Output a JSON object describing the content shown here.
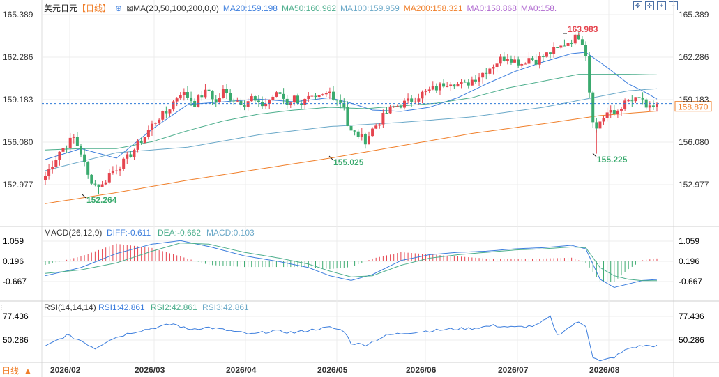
{
  "header": {
    "symbol": "美元日元",
    "period": "【日线】",
    "ma_title": "MA(20,50,100,200,0,0)",
    "ma20": "MA20:159.198",
    "ma50": "MA50:160.962",
    "ma100": "MA100:159.959",
    "ma200": "MA200:158.321",
    "ma0a": "MA0:158.868",
    "ma0b": "MA0:158."
  },
  "colors": {
    "up": "#e5454f",
    "down": "#3aaa6e",
    "ma20": "#3b7ddd",
    "ma50": "#4cae8c",
    "ma100": "#6aa8c8",
    "ma200": "#f07f2a",
    "ma0": "#b06ad0",
    "grid": "#ececec"
  },
  "price_axis": {
    "ticks": [
      "165.389",
      "162.286",
      "159.183",
      "156.080",
      "152.977"
    ],
    "current_price": "158.870",
    "labels": {
      "high": "163.983",
      "low1": "152.264",
      "low2": "155.025",
      "low3": "155.225"
    }
  },
  "macd": {
    "title": "MACD(26,12,9)",
    "diff": "DIFF:-0.611",
    "dea": "DEA:-0.662",
    "macd": "MACD:0.103",
    "ticks": [
      "1.059",
      "0.196",
      "-0.667"
    ]
  },
  "rsi": {
    "title": "RSI(14,14,14)",
    "rsi1": "RSI1:42.861",
    "rsi2": "RSI2:42.861",
    "rsi3": "RSI3:42.861",
    "ticks": [
      "77.436",
      "50.286"
    ]
  },
  "x_axis": {
    "ticks": [
      "2026/02",
      "2026/03",
      "2026/04",
      "2026/05",
      "2026/06",
      "2026/07",
      "2026/08"
    ]
  },
  "footer": {
    "period_selector": "日线"
  },
  "chart_data": {
    "type": "candlestick",
    "series_anchors": [
      {
        "i": 0,
        "c": 153.6
      },
      {
        "i": 4,
        "c": 155.4
      },
      {
        "i": 8,
        "c": 156.4
      },
      {
        "i": 10,
        "c": 155.3
      },
      {
        "i": 12,
        "c": 153.6
      },
      {
        "i": 14,
        "c": 153.0
      },
      {
        "i": 16,
        "c": 152.9
      },
      {
        "i": 18,
        "c": 153.8
      },
      {
        "i": 20,
        "c": 154.2
      },
      {
        "i": 22,
        "c": 154.6
      },
      {
        "i": 24,
        "c": 155.2
      },
      {
        "i": 26,
        "c": 155.9
      },
      {
        "i": 28,
        "c": 156.5
      },
      {
        "i": 30,
        "c": 157.3
      },
      {
        "i": 32,
        "c": 157.9
      },
      {
        "i": 34,
        "c": 158.2
      },
      {
        "i": 36,
        "c": 159.0
      },
      {
        "i": 38,
        "c": 159.7
      },
      {
        "i": 40,
        "c": 159.4
      },
      {
        "i": 42,
        "c": 158.9
      },
      {
        "i": 44,
        "c": 159.5
      },
      {
        "i": 46,
        "c": 159.8
      },
      {
        "i": 48,
        "c": 158.9
      },
      {
        "i": 50,
        "c": 159.8
      },
      {
        "i": 52,
        "c": 159.3
      },
      {
        "i": 54,
        "c": 159.1
      },
      {
        "i": 56,
        "c": 158.9
      },
      {
        "i": 58,
        "c": 159.3
      },
      {
        "i": 60,
        "c": 158.7
      },
      {
        "i": 62,
        "c": 158.9
      },
      {
        "i": 64,
        "c": 159.4
      },
      {
        "i": 66,
        "c": 159.6
      },
      {
        "i": 68,
        "c": 158.9
      },
      {
        "i": 70,
        "c": 159.3
      },
      {
        "i": 72,
        "c": 158.9
      },
      {
        "i": 74,
        "c": 159.2
      },
      {
        "i": 76,
        "c": 159.1
      },
      {
        "i": 78,
        "c": 159.4
      },
      {
        "i": 80,
        "c": 159.7
      },
      {
        "i": 82,
        "c": 159.2
      },
      {
        "i": 84,
        "c": 158.8
      },
      {
        "i": 85,
        "c": 157.3
      },
      {
        "i": 86,
        "c": 156.8
      },
      {
        "i": 88,
        "c": 156.6
      },
      {
        "i": 90,
        "c": 156.2
      },
      {
        "i": 92,
        "c": 157.0
      },
      {
        "i": 94,
        "c": 157.6
      },
      {
        "i": 96,
        "c": 158.2
      },
      {
        "i": 98,
        "c": 158.6
      },
      {
        "i": 100,
        "c": 158.8
      },
      {
        "i": 102,
        "c": 159.0
      },
      {
        "i": 104,
        "c": 159.3
      },
      {
        "i": 106,
        "c": 159.6
      },
      {
        "i": 108,
        "c": 159.8
      },
      {
        "i": 110,
        "c": 160.0
      },
      {
        "i": 112,
        "c": 160.3
      },
      {
        "i": 114,
        "c": 160.5
      },
      {
        "i": 116,
        "c": 160.3
      },
      {
        "i": 118,
        "c": 160.2
      },
      {
        "i": 120,
        "c": 160.6
      },
      {
        "i": 122,
        "c": 160.9
      },
      {
        "i": 124,
        "c": 161.3
      },
      {
        "i": 126,
        "c": 161.7
      },
      {
        "i": 128,
        "c": 162.1
      },
      {
        "i": 130,
        "c": 162.3
      },
      {
        "i": 132,
        "c": 162.0
      },
      {
        "i": 134,
        "c": 161.8
      },
      {
        "i": 136,
        "c": 162.2
      },
      {
        "i": 138,
        "c": 162.0
      },
      {
        "i": 140,
        "c": 162.3
      },
      {
        "i": 142,
        "c": 162.6
      },
      {
        "i": 144,
        "c": 162.8
      },
      {
        "i": 146,
        "c": 163.2
      },
      {
        "i": 148,
        "c": 163.5
      },
      {
        "i": 150,
        "c": 163.8
      },
      {
        "i": 151,
        "c": 163.4
      },
      {
        "i": 152,
        "c": 162.5
      },
      {
        "i": 153,
        "c": 159.8
      },
      {
        "i": 154,
        "c": 157.8
      },
      {
        "i": 155,
        "c": 157.0
      },
      {
        "i": 156,
        "c": 157.6
      },
      {
        "i": 158,
        "c": 158.2
      },
      {
        "i": 160,
        "c": 158.1
      },
      {
        "i": 162,
        "c": 158.7
      },
      {
        "i": 164,
        "c": 159.0
      },
      {
        "i": 166,
        "c": 159.1
      },
      {
        "i": 168,
        "c": 159.2
      },
      {
        "i": 169,
        "c": 158.3
      },
      {
        "i": 171,
        "c": 158.7
      },
      {
        "i": 172,
        "c": 158.87
      }
    ],
    "macd_anchors": [
      {
        "i": 0,
        "d": -0.45,
        "e": -0.35
      },
      {
        "i": 10,
        "d": -0.1,
        "e": -0.2
      },
      {
        "i": 20,
        "d": 0.5,
        "e": 0.1
      },
      {
        "i": 30,
        "d": 0.9,
        "e": 0.6
      },
      {
        "i": 38,
        "d": 1.05,
        "e": 0.95
      },
      {
        "i": 46,
        "d": 0.8,
        "e": 0.9
      },
      {
        "i": 56,
        "d": 0.4,
        "e": 0.55
      },
      {
        "i": 66,
        "d": 0.15,
        "e": 0.3
      },
      {
        "i": 74,
        "d": -0.1,
        "e": 0.05
      },
      {
        "i": 80,
        "d": -0.45,
        "e": -0.25
      },
      {
        "i": 86,
        "d": -0.65,
        "e": -0.5
      },
      {
        "i": 92,
        "d": -0.4,
        "e": -0.45
      },
      {
        "i": 100,
        "d": 0.2,
        "e": 0.0
      },
      {
        "i": 108,
        "d": 0.45,
        "e": 0.3
      },
      {
        "i": 116,
        "d": 0.55,
        "e": 0.45
      },
      {
        "i": 124,
        "d": 0.6,
        "e": 0.55
      },
      {
        "i": 132,
        "d": 0.7,
        "e": 0.65
      },
      {
        "i": 140,
        "d": 0.75,
        "e": 0.7
      },
      {
        "i": 148,
        "d": 0.85,
        "e": 0.78
      },
      {
        "i": 152,
        "d": 0.7,
        "e": 0.75
      },
      {
        "i": 156,
        "d": -0.6,
        "e": -0.1
      },
      {
        "i": 160,
        "d": -0.95,
        "e": -0.45
      },
      {
        "i": 164,
        "d": -0.8,
        "e": -0.6
      },
      {
        "i": 168,
        "d": -0.65,
        "e": -0.66
      },
      {
        "i": 172,
        "d": -0.611,
        "e": -0.662
      }
    ],
    "rsi_anchors": [
      {
        "i": 0,
        "v": 42
      },
      {
        "i": 6,
        "v": 55
      },
      {
        "i": 10,
        "v": 49
      },
      {
        "i": 14,
        "v": 40
      },
      {
        "i": 18,
        "v": 50
      },
      {
        "i": 24,
        "v": 58
      },
      {
        "i": 30,
        "v": 63
      },
      {
        "i": 36,
        "v": 68
      },
      {
        "i": 40,
        "v": 62
      },
      {
        "i": 46,
        "v": 64
      },
      {
        "i": 52,
        "v": 60
      },
      {
        "i": 58,
        "v": 56
      },
      {
        "i": 64,
        "v": 60
      },
      {
        "i": 70,
        "v": 58
      },
      {
        "i": 76,
        "v": 62
      },
      {
        "i": 80,
        "v": 64
      },
      {
        "i": 84,
        "v": 60
      },
      {
        "i": 86,
        "v": 46
      },
      {
        "i": 90,
        "v": 44
      },
      {
        "i": 96,
        "v": 55
      },
      {
        "i": 102,
        "v": 58
      },
      {
        "i": 108,
        "v": 60
      },
      {
        "i": 114,
        "v": 62
      },
      {
        "i": 120,
        "v": 63
      },
      {
        "i": 126,
        "v": 66
      },
      {
        "i": 132,
        "v": 64
      },
      {
        "i": 138,
        "v": 66
      },
      {
        "i": 142,
        "v": 76
      },
      {
        "i": 144,
        "v": 55
      },
      {
        "i": 148,
        "v": 66
      },
      {
        "i": 150,
        "v": 70
      },
      {
        "i": 152,
        "v": 66
      },
      {
        "i": 154,
        "v": 30
      },
      {
        "i": 156,
        "v": 25
      },
      {
        "i": 160,
        "v": 30
      },
      {
        "i": 164,
        "v": 40
      },
      {
        "i": 168,
        "v": 43
      },
      {
        "i": 172,
        "v": 42.86
      }
    ],
    "ma_anchors": {
      "ma20": [
        {
          "i": 0,
          "v": 154.8
        },
        {
          "i": 10,
          "v": 155.6
        },
        {
          "i": 20,
          "v": 154.9
        },
        {
          "i": 30,
          "v": 157.0
        },
        {
          "i": 40,
          "v": 158.8
        },
        {
          "i": 50,
          "v": 159.0
        },
        {
          "i": 60,
          "v": 159.2
        },
        {
          "i": 70,
          "v": 159.0
        },
        {
          "i": 80,
          "v": 159.3
        },
        {
          "i": 86,
          "v": 158.9
        },
        {
          "i": 92,
          "v": 158.4
        },
        {
          "i": 100,
          "v": 158.3
        },
        {
          "i": 108,
          "v": 158.6
        },
        {
          "i": 116,
          "v": 159.3
        },
        {
          "i": 124,
          "v": 160.3
        },
        {
          "i": 132,
          "v": 161.2
        },
        {
          "i": 140,
          "v": 161.9
        },
        {
          "i": 148,
          "v": 162.5
        },
        {
          "i": 152,
          "v": 162.6
        },
        {
          "i": 158,
          "v": 161.5
        },
        {
          "i": 164,
          "v": 160.3
        },
        {
          "i": 168,
          "v": 159.8
        },
        {
          "i": 172,
          "v": 159.2
        }
      ],
      "ma50": [
        {
          "i": 0,
          "v": 155.5
        },
        {
          "i": 10,
          "v": 155.6
        },
        {
          "i": 20,
          "v": 155.6
        },
        {
          "i": 30,
          "v": 156.1
        },
        {
          "i": 40,
          "v": 156.9
        },
        {
          "i": 50,
          "v": 157.6
        },
        {
          "i": 60,
          "v": 158.1
        },
        {
          "i": 70,
          "v": 158.4
        },
        {
          "i": 80,
          "v": 158.6
        },
        {
          "i": 90,
          "v": 158.5
        },
        {
          "i": 100,
          "v": 158.7
        },
        {
          "i": 110,
          "v": 158.9
        },
        {
          "i": 120,
          "v": 159.3
        },
        {
          "i": 130,
          "v": 160.0
        },
        {
          "i": 140,
          "v": 160.5
        },
        {
          "i": 150,
          "v": 161.0
        },
        {
          "i": 156,
          "v": 161.0
        },
        {
          "i": 164,
          "v": 161.0
        },
        {
          "i": 172,
          "v": 160.96
        }
      ],
      "ma100": [
        {
          "i": 0,
          "v": 154.0
        },
        {
          "i": 20,
          "v": 155.3
        },
        {
          "i": 40,
          "v": 155.7
        },
        {
          "i": 60,
          "v": 156.6
        },
        {
          "i": 80,
          "v": 157.2
        },
        {
          "i": 100,
          "v": 157.5
        },
        {
          "i": 120,
          "v": 157.9
        },
        {
          "i": 140,
          "v": 158.6
        },
        {
          "i": 156,
          "v": 159.4
        },
        {
          "i": 164,
          "v": 159.8
        },
        {
          "i": 172,
          "v": 159.96
        }
      ],
      "ma200": [
        {
          "i": 0,
          "v": 151.6
        },
        {
          "i": 20,
          "v": 152.4
        },
        {
          "i": 40,
          "v": 153.3
        },
        {
          "i": 60,
          "v": 154.1
        },
        {
          "i": 80,
          "v": 154.9
        },
        {
          "i": 100,
          "v": 155.8
        },
        {
          "i": 120,
          "v": 156.7
        },
        {
          "i": 140,
          "v": 157.4
        },
        {
          "i": 156,
          "v": 158.0
        },
        {
          "i": 172,
          "v": 158.32
        }
      ]
    }
  }
}
